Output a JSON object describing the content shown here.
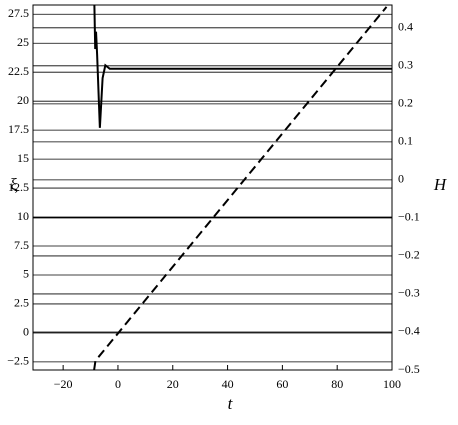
{
  "chart_data": {
    "type": "line",
    "xlabel": "t",
    "ylabel": "ξ",
    "y2label": "H",
    "xlim": [
      -31,
      100
    ],
    "xticks": [
      {
        "value": -20,
        "label": "−20"
      },
      0,
      20,
      40,
      60,
      80,
      100
    ],
    "ylim": [
      -3.2,
      28.3
    ],
    "yticks": [
      {
        "value": -2.5,
        "label": "−2.5"
      },
      0,
      2.5,
      5,
      7.5,
      10,
      12.5,
      15,
      17.5,
      20,
      22.5,
      25,
      27.5
    ],
    "y2lim": [
      -0.5,
      0.46
    ],
    "y2ticks": [
      {
        "value": -0.5,
        "label": "−0.5"
      },
      {
        "value": -0.4,
        "label": "−0.4"
      },
      {
        "value": -0.3,
        "label": "−0.3"
      },
      {
        "value": -0.2,
        "label": "−0.2"
      },
      {
        "value": -0.1,
        "label": "−0.1"
      },
      0,
      0.1,
      0.2,
      0.3,
      0.4
    ],
    "grid": true,
    "series": [
      {
        "color": "#000000",
        "dash": false,
        "x": [
          -8.6,
          -8.3,
          -8.0,
          -7.6,
          -6.6,
          -5.6,
          -4.6,
          -3,
          100
        ],
        "values": [
          28.3,
          24.5,
          26,
          24,
          17.7,
          22,
          23.1,
          22.8,
          22.8
        ]
      },
      {
        "color": "#000000",
        "dash": true,
        "axis": "y2",
        "x": [
          -8.7,
          -8.2,
          -7,
          98
        ],
        "values": [
          -0.5,
          -0.475,
          -0.465,
          0.455
        ]
      }
    ]
  }
}
